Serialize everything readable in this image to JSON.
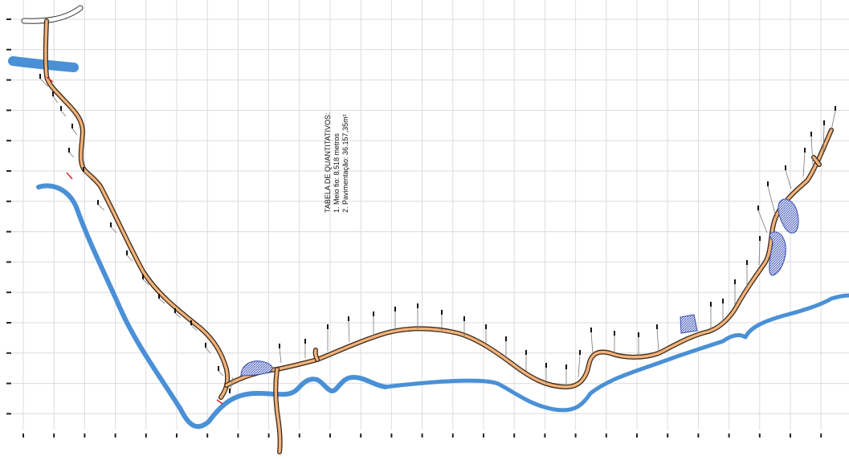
{
  "quantities_table": {
    "title": "TABELA DE QUANTITATIVOS:",
    "item1": "1.  Meio fio: 8.518  metros",
    "item2": "2.  Pavimentação:  36.157,35m²"
  },
  "colors": {
    "river": "#4a90d6",
    "road_fill": "#f2b27a",
    "road_edge": "#3a2a1a",
    "pond": "#3b4fb0",
    "grid": "#dcdcdc"
  }
}
